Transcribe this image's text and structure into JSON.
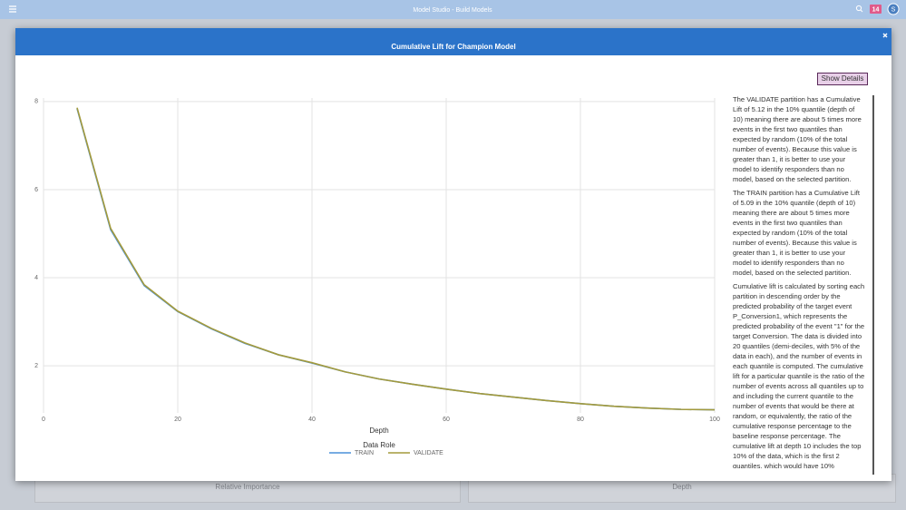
{
  "header": {
    "title": "Model Studio - Build Models",
    "badge": "14",
    "avatar": "S"
  },
  "background": {
    "panels": [
      "Relative Importance",
      "Depth"
    ]
  },
  "modal": {
    "title": "Cumulative Lift for Champion Model",
    "button": "Show Details",
    "details": [
      "The VALIDATE partition has a Cumulative Lift of 5.12 in the 10% quantile (depth of 10) meaning there are about 5 times more events in the first two quantiles than expected by random (10% of the total number of events). Because this value is greater than 1, it is better to use your model to identify responders than no model, based on the selected partition.",
      "The TRAIN partition has a Cumulative Lift of 5.09 in the 10% quantile (depth of 10) meaning there are about 5 times more events in the first two quantiles than expected by random (10% of the total number of events). Because this value is greater than 1, it is better to use your model to identify responders than no model, based on the selected partition.",
      "Cumulative lift is calculated by sorting each partition in descending order by the predicted probability of the target event P_Conversion1, which represents the predicted probability of the event \"1\" for the target Conversion. The data is divided into 20 quantiles (demi-deciles, with 5% of the data in each), and the number of events in each quantile is computed. The cumulative lift for a particular quantile is the ratio of the number of events across all quantiles up to and including the current quantile to the number of events that would be there at random, or equivalently, the ratio of the cumulative response percentage to the baseline response percentage. The cumulative lift at depth 10 includes the top 10% of the data, which is the first 2 quantiles, which would have 10%"
    ]
  },
  "chart_data": {
    "type": "line",
    "x_label": "Depth",
    "legend_title": "Data Role",
    "x": [
      5,
      10,
      15,
      20,
      25,
      30,
      35,
      40,
      45,
      50,
      55,
      60,
      65,
      70,
      75,
      80,
      85,
      90,
      95,
      100
    ],
    "series": [
      {
        "name": "TRAIN",
        "color": "#4a90d9",
        "values": [
          7.84,
          5.09,
          3.82,
          3.23,
          2.84,
          2.51,
          2.25,
          2.06,
          1.86,
          1.7,
          1.58,
          1.47,
          1.37,
          1.29,
          1.21,
          1.14,
          1.08,
          1.04,
          1.01,
          1
        ]
      },
      {
        "name": "VALIDATE",
        "color": "#a39a3c",
        "values": [
          7.86,
          5.12,
          3.84,
          3.24,
          2.85,
          2.52,
          2.25,
          2.07,
          1.86,
          1.7,
          1.58,
          1.47,
          1.37,
          1.29,
          1.21,
          1.14,
          1.08,
          1.04,
          1.01,
          1
        ]
      }
    ],
    "xlim": [
      0,
      100
    ],
    "xticks": [
      0,
      20,
      40,
      60,
      80,
      100
    ],
    "ylim": [
      0.93,
      8.08
    ],
    "yticks": [
      2,
      4,
      6,
      8
    ],
    "grid": true
  }
}
